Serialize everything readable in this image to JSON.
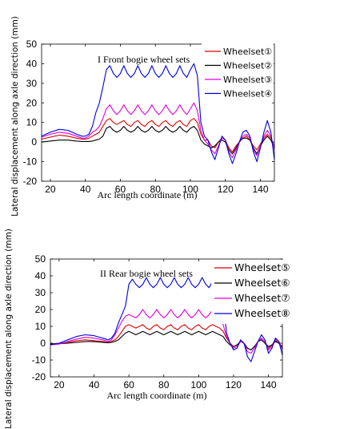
{
  "chart_data": [
    {
      "type": "line",
      "annotation": "I Front bogie wheel sets",
      "xlabel": "Arc length coordinate (m)",
      "ylabel": "Lateral displacement along axle direction (mm)",
      "xlim": [
        15,
        148
      ],
      "ylim": [
        -20,
        50
      ],
      "xticks": [
        20,
        40,
        60,
        80,
        100,
        120,
        140
      ],
      "yticks": [
        -20,
        -10,
        0,
        10,
        20,
        30,
        40,
        50
      ],
      "legend_position": "top-right",
      "x": [
        15,
        20,
        25,
        30,
        35,
        38,
        40,
        42,
        44,
        46,
        48,
        50,
        52,
        54,
        56,
        58,
        60,
        62,
        64,
        66,
        68,
        70,
        72,
        74,
        76,
        78,
        80,
        82,
        84,
        86,
        88,
        90,
        92,
        94,
        96,
        98,
        100,
        102,
        104,
        106,
        108,
        110,
        112,
        114,
        116,
        118,
        120,
        122,
        124,
        126,
        128,
        130,
        132,
        134,
        136,
        138,
        140,
        142,
        144,
        146,
        148
      ],
      "series": [
        {
          "name": "Wheelset①",
          "color": "#e00000",
          "values": [
            1.5,
            2.5,
            3.5,
            3,
            2,
            1.5,
            1.5,
            2,
            3,
            4,
            5,
            8,
            11,
            12,
            10,
            9,
            10,
            11,
            9,
            8,
            10,
            11,
            9,
            8,
            10,
            11,
            9,
            8,
            10,
            11,
            9,
            8,
            10,
            11,
            9,
            8,
            11,
            12,
            10,
            4,
            1,
            1,
            -2,
            -3,
            0,
            2,
            1,
            -3,
            -5,
            -2,
            0,
            2,
            3,
            1,
            -2,
            -4,
            -1,
            2,
            4,
            2,
            -2
          ]
        },
        {
          "name": "Wheelset②",
          "color": "#000000",
          "values": [
            0,
            0.5,
            1,
            1,
            0.5,
            0.3,
            0.3,
            0.3,
            0.5,
            1,
            1.5,
            3,
            7,
            8,
            6,
            5,
            6,
            8,
            6,
            5,
            6,
            8,
            6,
            5,
            6,
            8,
            6,
            5,
            6,
            8,
            6,
            5,
            6,
            8,
            6,
            5,
            7,
            8,
            6,
            1,
            -1,
            -2,
            -3,
            -2,
            0,
            1,
            0,
            -4,
            -6,
            -3,
            0,
            2,
            2,
            1,
            -3,
            -6,
            -2,
            1,
            3,
            1,
            -3
          ]
        },
        {
          "name": "Wheelset③",
          "color": "#e000e0",
          "values": [
            2.5,
            4,
            5,
            4.5,
            3,
            2,
            2,
            3,
            5,
            6,
            8,
            12,
            17,
            19,
            16,
            14,
            16,
            19,
            16,
            14,
            16,
            19,
            16,
            14,
            16,
            19,
            16,
            14,
            16,
            19,
            16,
            14,
            16,
            19,
            16,
            14,
            17,
            20,
            16,
            6,
            1,
            -1,
            -4,
            -6,
            -2,
            2,
            1,
            -5,
            -8,
            -4,
            0,
            3,
            4,
            2,
            -4,
            -7,
            -2,
            3,
            6,
            3,
            -4
          ]
        },
        {
          "name": "Wheelset④",
          "color": "#0000e0",
          "values": [
            3,
            5,
            6.5,
            6,
            4,
            3,
            3,
            4,
            8,
            15,
            20,
            28,
            37,
            39,
            35,
            33,
            35,
            39,
            35,
            33,
            35,
            39,
            35,
            33,
            35,
            39,
            35,
            33,
            35,
            39,
            35,
            33,
            35,
            39,
            35,
            33,
            37,
            40,
            34,
            10,
            3,
            1,
            -5,
            -9,
            -3,
            3,
            1,
            -6,
            -11,
            -6,
            0,
            5,
            6,
            3,
            -5,
            -10,
            -3,
            5,
            11,
            5,
            -9
          ]
        }
      ]
    },
    {
      "type": "line",
      "annotation": "II Rear bogie wheel sets",
      "xlabel": "Arc length coordinate (m)",
      "ylabel": "Lateral displacement along axle direction (mm)",
      "xlim": [
        15,
        148
      ],
      "ylim": [
        -20,
        50
      ],
      "xticks": [
        20,
        40,
        60,
        80,
        100,
        120,
        140
      ],
      "yticks": [
        -20,
        -10,
        0,
        10,
        20,
        30,
        40,
        50
      ],
      "legend_position": "top-right",
      "x": [
        15,
        20,
        25,
        30,
        35,
        40,
        45,
        48,
        50,
        52,
        54,
        56,
        58,
        60,
        62,
        64,
        66,
        68,
        70,
        72,
        74,
        76,
        78,
        80,
        82,
        84,
        86,
        88,
        90,
        92,
        94,
        96,
        98,
        100,
        102,
        104,
        106,
        108,
        110,
        112,
        114,
        116,
        118,
        120,
        122,
        124,
        126,
        128,
        130,
        132,
        134,
        136,
        138,
        140,
        142,
        144,
        146,
        148
      ],
      "series": [
        {
          "name": "Wheelset⑤",
          "color": "#e00000",
          "values": [
            -0.5,
            0,
            0.5,
            1.5,
            2,
            1.5,
            1,
            0.5,
            1,
            2,
            4,
            7,
            10,
            11,
            10,
            9,
            10,
            11,
            9,
            8,
            10,
            11,
            9,
            8,
            10,
            11,
            9,
            8,
            10,
            11,
            9,
            8,
            10,
            11,
            9,
            8,
            10,
            11,
            10,
            9,
            7,
            3,
            0,
            -2,
            -1,
            1,
            0,
            -3,
            -4,
            -2,
            1,
            2,
            0,
            -3,
            -1,
            2,
            0,
            -3
          ]
        },
        {
          "name": "Wheelset⑥",
          "color": "#000000",
          "values": [
            -0.5,
            -0.3,
            0,
            0.5,
            1,
            1,
            0.5,
            0.3,
            0.5,
            1,
            2,
            4,
            6,
            7,
            6,
            5,
            6,
            7,
            6,
            5,
            6,
            7,
            6,
            5,
            6,
            7,
            6,
            5,
            6,
            7,
            6,
            5,
            6,
            7,
            6,
            5,
            6,
            7,
            6,
            5,
            4,
            1,
            -1,
            -2,
            -1,
            1,
            0,
            -3,
            -4,
            -2,
            1,
            2,
            0,
            -2,
            -1,
            1,
            0,
            -2
          ]
        },
        {
          "name": "Wheelset⑦",
          "color": "#e000e0",
          "values": [
            -1,
            -0.5,
            1,
            2.5,
            3.5,
            3,
            2,
            1,
            2,
            5,
            9,
            13,
            16,
            17,
            16,
            15,
            17,
            20,
            17,
            15,
            17,
            20,
            17,
            15,
            17,
            20,
            17,
            15,
            17,
            20,
            17,
            15,
            17,
            20,
            17,
            15,
            17,
            20,
            17,
            15,
            11,
            4,
            0,
            -3,
            -2,
            1,
            0,
            -5,
            -6,
            -3,
            1,
            3,
            1,
            -4,
            -2,
            3,
            1,
            -4
          ]
        },
        {
          "name": "Wheelset⑧",
          "color": "#0000e0",
          "values": [
            -1,
            0,
            2,
            4,
            5,
            4.5,
            3,
            2,
            3,
            6,
            12,
            17,
            22,
            35,
            38,
            35,
            33,
            35,
            39,
            35,
            33,
            35,
            39,
            35,
            33,
            35,
            39,
            35,
            33,
            35,
            39,
            35,
            33,
            35,
            39,
            35,
            33,
            37,
            39,
            35,
            25,
            6,
            0,
            -4,
            -3,
            2,
            0,
            -8,
            -11,
            -5,
            1,
            5,
            2,
            -6,
            -3,
            3,
            1,
            -7
          ]
        }
      ]
    }
  ]
}
